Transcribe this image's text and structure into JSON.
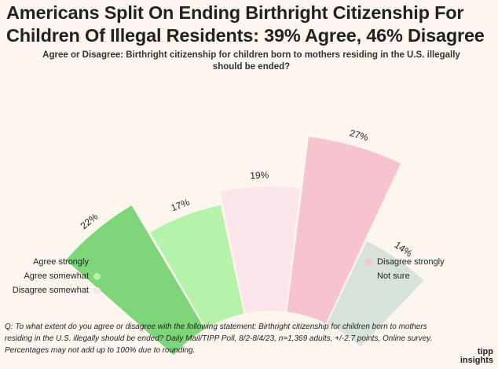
{
  "header": {
    "title_line1": "Americans Split On Ending Birthright Citizenship For",
    "title_line2": "Children Of Illegal Residents: 39% Agree, 46% Disagree",
    "subtitle_line1": "Agree or Disagree: Birthright citizenship for children born to mothers residing in the U.S. illegally",
    "subtitle_line2": "should be ended?"
  },
  "chart_data": {
    "type": "bar",
    "variant": "radial-fan",
    "title": "Americans Split On Ending Birthright Citizenship For Children Of Illegal Residents: 39% Agree, 46% Disagree",
    "subtitle": "Agree or Disagree: Birthright citizenship for children born to mothers residing in the U.S. illegally should be ended?",
    "categories": [
      "Agree strongly",
      "Agree somewhat",
      "Disagree somewhat",
      "Disagree strongly",
      "Not sure"
    ],
    "values": [
      22,
      17,
      19,
      27,
      14
    ],
    "labels": [
      "22%",
      "17%",
      "19%",
      "27%",
      "14%"
    ],
    "colors": [
      "#7fd67a",
      "#b4f3a9",
      "#fbe4ea",
      "#f6c3cf",
      "#d7e2da"
    ],
    "legend_position": "split-left-right",
    "grid": false
  },
  "legend": {
    "left": [
      {
        "label": "Agree strongly",
        "color": "#7fd67a"
      },
      {
        "label": "Agree somewhat",
        "color": "#b4f3a9"
      },
      {
        "label": "Disagree somewhat",
        "color": "#fbe4ea"
      }
    ],
    "right": [
      {
        "label": "Disagree strongly",
        "color": "#f6c3cf"
      },
      {
        "label": "Not sure",
        "color": "#d7e2da"
      }
    ]
  },
  "footnote": {
    "line1": "Q: To what extent do you agree or disagree with the following statement: Birthright citizenship for children born to mothers",
    "line2": "residing in the U.S. illegally should be ended? Daily Mail/TIPP Poll, 8/2-8/4/23, n=1,369 adults, +/-2.7 points, Online survey.",
    "line3": "Percentages may not add up to 100% due to rounding."
  },
  "brand": {
    "line1": "tipp",
    "line2": "insights"
  }
}
